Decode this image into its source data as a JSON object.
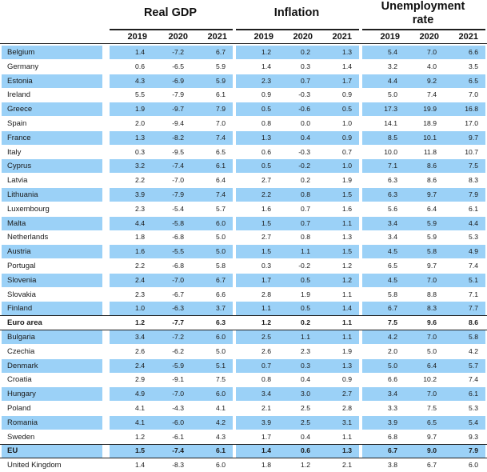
{
  "headers": {
    "groups": [
      "Real GDP",
      "Inflation",
      "Unemployment",
      "rate"
    ],
    "years": [
      "2019",
      "2020",
      "2021"
    ]
  },
  "colors": {
    "highlight": "#9bd1f7"
  },
  "rows": [
    {
      "country": "Belgium",
      "gdp": [
        "1.4",
        "-7.2",
        "6.7"
      ],
      "inf": [
        "1.2",
        "0.2",
        "1.3"
      ],
      "unemp": [
        "5.4",
        "7.0",
        "6.6"
      ],
      "hl": true
    },
    {
      "country": "Germany",
      "gdp": [
        "0.6",
        "-6.5",
        "5.9"
      ],
      "inf": [
        "1.4",
        "0.3",
        "1.4"
      ],
      "unemp": [
        "3.2",
        "4.0",
        "3.5"
      ],
      "hl": false
    },
    {
      "country": "Estonia",
      "gdp": [
        "4.3",
        "-6.9",
        "5.9"
      ],
      "inf": [
        "2.3",
        "0.7",
        "1.7"
      ],
      "unemp": [
        "4.4",
        "9.2",
        "6.5"
      ],
      "hl": true
    },
    {
      "country": "Ireland",
      "gdp": [
        "5.5",
        "-7.9",
        "6.1"
      ],
      "inf": [
        "0.9",
        "-0.3",
        "0.9"
      ],
      "unemp": [
        "5.0",
        "7.4",
        "7.0"
      ],
      "hl": false
    },
    {
      "country": "Greece",
      "gdp": [
        "1.9",
        "-9.7",
        "7.9"
      ],
      "inf": [
        "0.5",
        "-0.6",
        "0.5"
      ],
      "unemp": [
        "17.3",
        "19.9",
        "16.8"
      ],
      "hl": true
    },
    {
      "country": "Spain",
      "gdp": [
        "2.0",
        "-9.4",
        "7.0"
      ],
      "inf": [
        "0.8",
        "0.0",
        "1.0"
      ],
      "unemp": [
        "14.1",
        "18.9",
        "17.0"
      ],
      "hl": false
    },
    {
      "country": "France",
      "gdp": [
        "1.3",
        "-8.2",
        "7.4"
      ],
      "inf": [
        "1.3",
        "0.4",
        "0.9"
      ],
      "unemp": [
        "8.5",
        "10.1",
        "9.7"
      ],
      "hl": true
    },
    {
      "country": "Italy",
      "gdp": [
        "0.3",
        "-9.5",
        "6.5"
      ],
      "inf": [
        "0.6",
        "-0.3",
        "0.7"
      ],
      "unemp": [
        "10.0",
        "11.8",
        "10.7"
      ],
      "hl": false
    },
    {
      "country": "Cyprus",
      "gdp": [
        "3.2",
        "-7.4",
        "6.1"
      ],
      "inf": [
        "0.5",
        "-0.2",
        "1.0"
      ],
      "unemp": [
        "7.1",
        "8.6",
        "7.5"
      ],
      "hl": true
    },
    {
      "country": "Latvia",
      "gdp": [
        "2.2",
        "-7.0",
        "6.4"
      ],
      "inf": [
        "2.7",
        "0.2",
        "1.9"
      ],
      "unemp": [
        "6.3",
        "8.6",
        "8.3"
      ],
      "hl": false
    },
    {
      "country": "Lithuania",
      "gdp": [
        "3.9",
        "-7.9",
        "7.4"
      ],
      "inf": [
        "2.2",
        "0.8",
        "1.5"
      ],
      "unemp": [
        "6.3",
        "9.7",
        "7.9"
      ],
      "hl": true
    },
    {
      "country": "Luxembourg",
      "gdp": [
        "2.3",
        "-5.4",
        "5.7"
      ],
      "inf": [
        "1.6",
        "0.7",
        "1.6"
      ],
      "unemp": [
        "5.6",
        "6.4",
        "6.1"
      ],
      "hl": false
    },
    {
      "country": "Malta",
      "gdp": [
        "4.4",
        "-5.8",
        "6.0"
      ],
      "inf": [
        "1.5",
        "0.7",
        "1.1"
      ],
      "unemp": [
        "3.4",
        "5.9",
        "4.4"
      ],
      "hl": true
    },
    {
      "country": "Netherlands",
      "gdp": [
        "1.8",
        "-6.8",
        "5.0"
      ],
      "inf": [
        "2.7",
        "0.8",
        "1.3"
      ],
      "unemp": [
        "3.4",
        "5.9",
        "5.3"
      ],
      "hl": false
    },
    {
      "country": "Austria",
      "gdp": [
        "1.6",
        "-5.5",
        "5.0"
      ],
      "inf": [
        "1.5",
        "1.1",
        "1.5"
      ],
      "unemp": [
        "4.5",
        "5.8",
        "4.9"
      ],
      "hl": true
    },
    {
      "country": "Portugal",
      "gdp": [
        "2.2",
        "-6.8",
        "5.8"
      ],
      "inf": [
        "0.3",
        "-0.2",
        "1.2"
      ],
      "unemp": [
        "6.5",
        "9.7",
        "7.4"
      ],
      "hl": false
    },
    {
      "country": "Slovenia",
      "gdp": [
        "2.4",
        "-7.0",
        "6.7"
      ],
      "inf": [
        "1.7",
        "0.5",
        "1.2"
      ],
      "unemp": [
        "4.5",
        "7.0",
        "5.1"
      ],
      "hl": true
    },
    {
      "country": "Slovakia",
      "gdp": [
        "2.3",
        "-6.7",
        "6.6"
      ],
      "inf": [
        "2.8",
        "1.9",
        "1.1"
      ],
      "unemp": [
        "5.8",
        "8.8",
        "7.1"
      ],
      "hl": false
    },
    {
      "country": "Finland",
      "gdp": [
        "1.0",
        "-6.3",
        "3.7"
      ],
      "inf": [
        "1.1",
        "0.5",
        "1.4"
      ],
      "unemp": [
        "6.7",
        "8.3",
        "7.7"
      ],
      "hl": true
    },
    {
      "country": "Euro area",
      "gdp": [
        "1.2",
        "-7.7",
        "6.3"
      ],
      "inf": [
        "1.2",
        "0.2",
        "1.1"
      ],
      "unemp": [
        "7.5",
        "9.6",
        "8.6"
      ],
      "hl": false,
      "bold": true
    },
    {
      "country": "Bulgaria",
      "gdp": [
        "3.4",
        "-7.2",
        "6.0"
      ],
      "inf": [
        "2.5",
        "1.1",
        "1.1"
      ],
      "unemp": [
        "4.2",
        "7.0",
        "5.8"
      ],
      "hl": true
    },
    {
      "country": "Czechia",
      "gdp": [
        "2.6",
        "-6.2",
        "5.0"
      ],
      "inf": [
        "2.6",
        "2.3",
        "1.9"
      ],
      "unemp": [
        "2.0",
        "5.0",
        "4.2"
      ],
      "hl": false
    },
    {
      "country": "Denmark",
      "gdp": [
        "2.4",
        "-5.9",
        "5.1"
      ],
      "inf": [
        "0.7",
        "0.3",
        "1.3"
      ],
      "unemp": [
        "5.0",
        "6.4",
        "5.7"
      ],
      "hl": true
    },
    {
      "country": "Croatia",
      "gdp": [
        "2.9",
        "-9.1",
        "7.5"
      ],
      "inf": [
        "0.8",
        "0.4",
        "0.9"
      ],
      "unemp": [
        "6.6",
        "10.2",
        "7.4"
      ],
      "hl": false
    },
    {
      "country": "Hungary",
      "gdp": [
        "4.9",
        "-7.0",
        "6.0"
      ],
      "inf": [
        "3.4",
        "3.0",
        "2.7"
      ],
      "unemp": [
        "3.4",
        "7.0",
        "6.1"
      ],
      "hl": true
    },
    {
      "country": "Poland",
      "gdp": [
        "4.1",
        "-4.3",
        "4.1"
      ],
      "inf": [
        "2.1",
        "2.5",
        "2.8"
      ],
      "unemp": [
        "3.3",
        "7.5",
        "5.3"
      ],
      "hl": false
    },
    {
      "country": "Romania",
      "gdp": [
        "4.1",
        "-6.0",
        "4.2"
      ],
      "inf": [
        "3.9",
        "2.5",
        "3.1"
      ],
      "unemp": [
        "3.9",
        "6.5",
        "5.4"
      ],
      "hl": true
    },
    {
      "country": "Sweden",
      "gdp": [
        "1.2",
        "-6.1",
        "4.3"
      ],
      "inf": [
        "1.7",
        "0.4",
        "1.1"
      ],
      "unemp": [
        "6.8",
        "9.7",
        "9.3"
      ],
      "hl": false
    },
    {
      "country": "EU",
      "gdp": [
        "1.5",
        "-7.4",
        "6.1"
      ],
      "inf": [
        "1.4",
        "0.6",
        "1.3"
      ],
      "unemp": [
        "6.7",
        "9.0",
        "7.9"
      ],
      "hl": true,
      "bold": true
    },
    {
      "country": "United Kingdom",
      "gdp": [
        "1.4",
        "-8.3",
        "6.0"
      ],
      "inf": [
        "1.8",
        "1.2",
        "2.1"
      ],
      "unemp": [
        "3.8",
        "6.7",
        "6.0"
      ],
      "hl": false
    }
  ]
}
